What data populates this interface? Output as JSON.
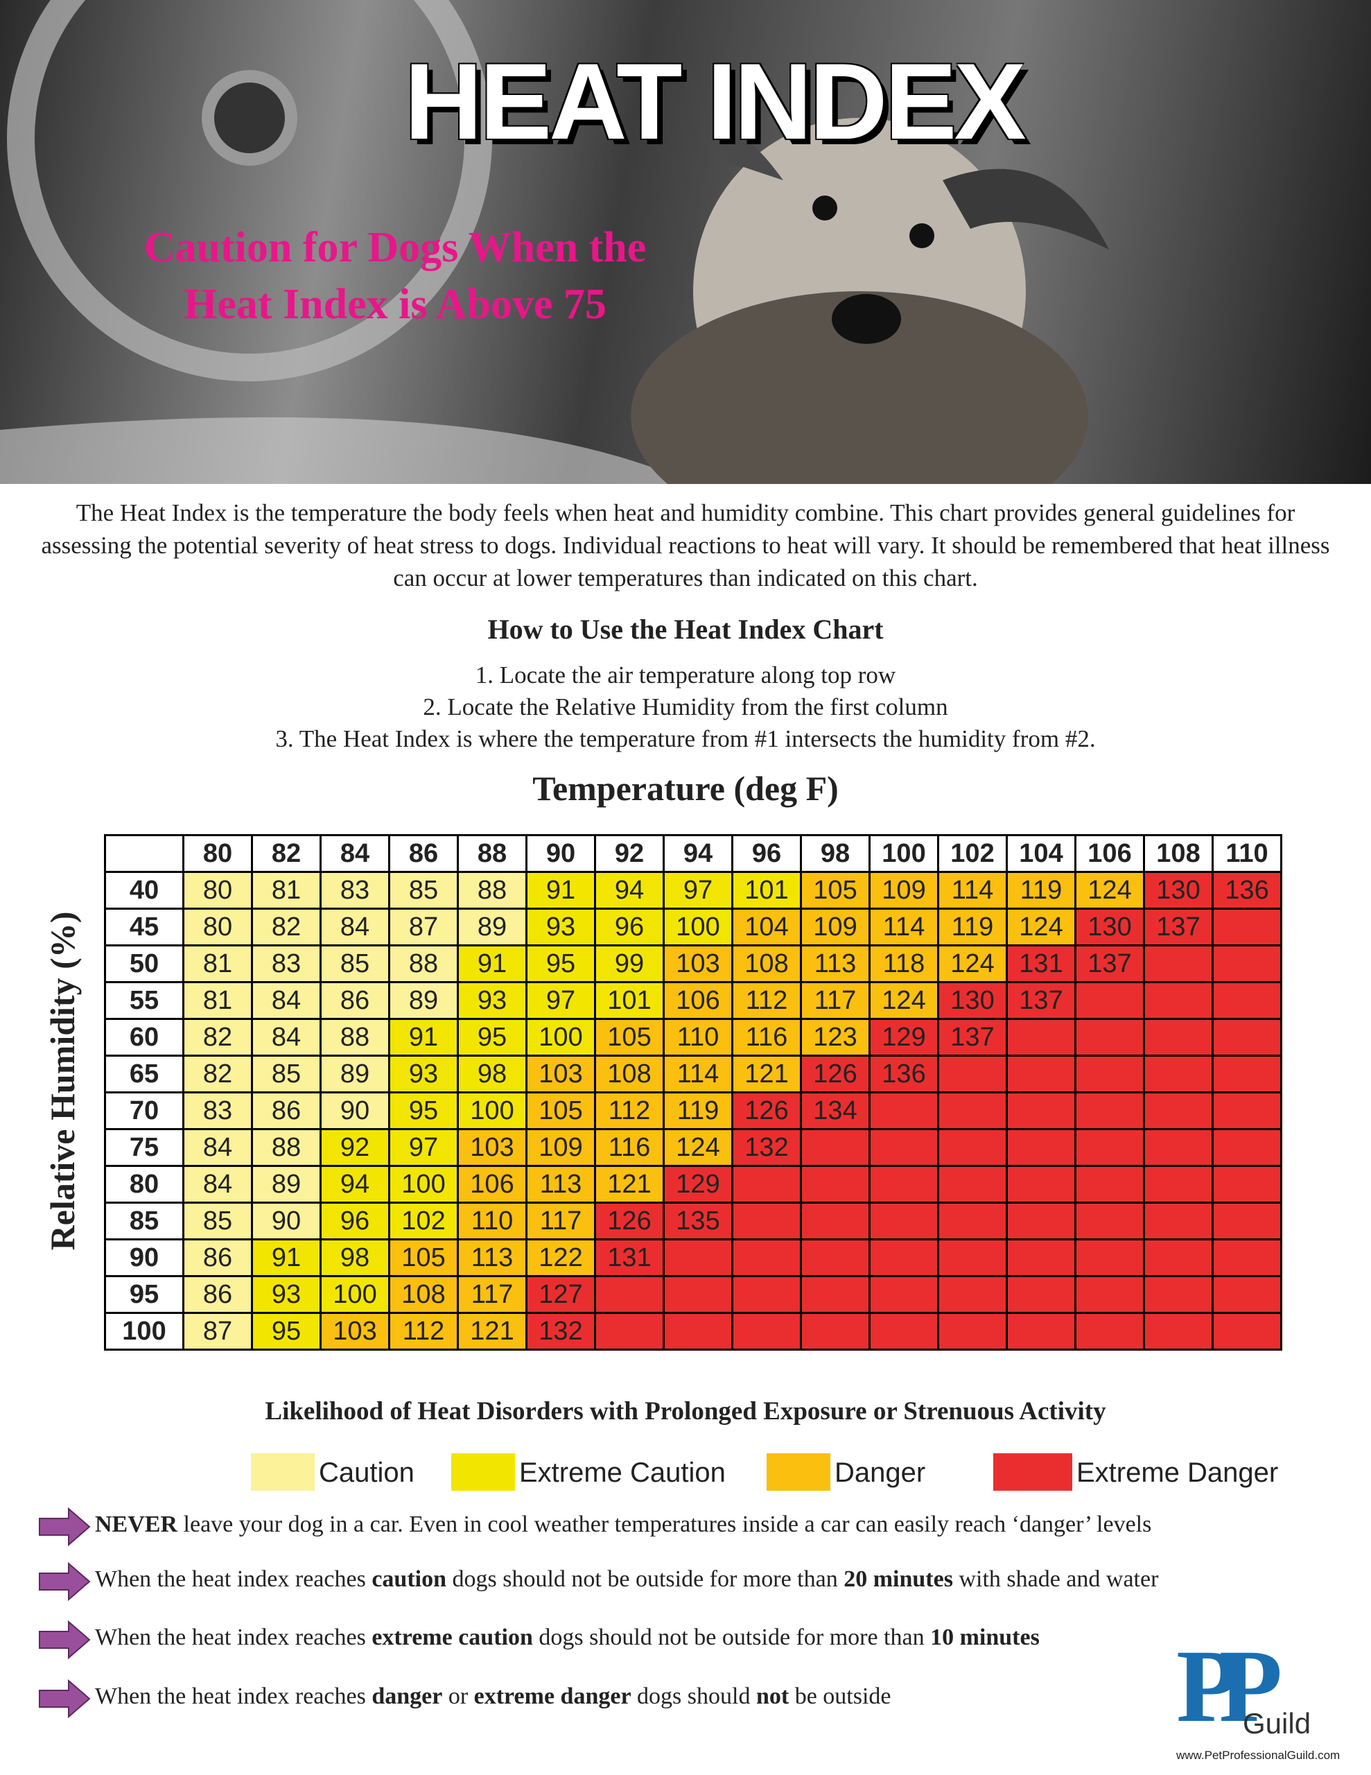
{
  "header": {
    "title": "HEAT INDEX",
    "subtitle": [
      "Caution for Dogs When the",
      "Heat Index is Above 75"
    ]
  },
  "intro": "The Heat Index is the temperature the body feels when heat and humidity combine.  This chart provides general guidelines for assessing the potential severity of heat stress to dogs.  Individual reactions to heat will vary.  It should be remembered that heat illness can occur at lower temperatures than indicated on this chart.",
  "how_to": {
    "title": "How to Use the Heat Index Chart",
    "steps": [
      "1. Locate the air temperature along top row",
      "2. Locate the Relative Humidity from the first column",
      "3. The Heat Index is where the temperature from #1 intersects the humidity from #2."
    ]
  },
  "table": {
    "column_title": "Temperature (deg F)",
    "row_title": "Relative Humidity (%)",
    "columns": [
      80,
      82,
      84,
      86,
      88,
      90,
      92,
      94,
      96,
      98,
      100,
      102,
      104,
      106,
      108,
      110
    ],
    "rows": [
      {
        "humidity": 40,
        "values": [
          80,
          81,
          83,
          85,
          88,
          91,
          94,
          97,
          101,
          105,
          109,
          114,
          119,
          124,
          130,
          136
        ],
        "levels": [
          0,
          0,
          0,
          0,
          0,
          1,
          1,
          1,
          1,
          2,
          2,
          2,
          2,
          2,
          3,
          3
        ]
      },
      {
        "humidity": 45,
        "values": [
          80,
          82,
          84,
          87,
          89,
          93,
          96,
          100,
          104,
          109,
          114,
          119,
          124,
          130,
          137,
          null
        ],
        "levels": [
          0,
          0,
          0,
          0,
          0,
          1,
          1,
          1,
          2,
          2,
          2,
          2,
          2,
          3,
          3,
          3
        ]
      },
      {
        "humidity": 50,
        "values": [
          81,
          83,
          85,
          88,
          91,
          95,
          99,
          103,
          108,
          113,
          118,
          124,
          131,
          137,
          null,
          null
        ],
        "levels": [
          0,
          0,
          0,
          0,
          1,
          1,
          1,
          2,
          2,
          2,
          2,
          2,
          3,
          3,
          3,
          3
        ]
      },
      {
        "humidity": 55,
        "values": [
          81,
          84,
          86,
          89,
          93,
          97,
          101,
          106,
          112,
          117,
          124,
          130,
          137,
          null,
          null,
          null
        ],
        "levels": [
          0,
          0,
          0,
          0,
          1,
          1,
          1,
          2,
          2,
          2,
          2,
          3,
          3,
          3,
          3,
          3
        ]
      },
      {
        "humidity": 60,
        "values": [
          82,
          84,
          88,
          91,
          95,
          100,
          105,
          110,
          116,
          123,
          129,
          137,
          null,
          null,
          null,
          null
        ],
        "levels": [
          0,
          0,
          0,
          1,
          1,
          1,
          2,
          2,
          2,
          2,
          3,
          3,
          3,
          3,
          3,
          3
        ]
      },
      {
        "humidity": 65,
        "values": [
          82,
          85,
          89,
          93,
          98,
          103,
          108,
          114,
          121,
          126,
          136,
          null,
          null,
          null,
          null,
          null
        ],
        "levels": [
          0,
          0,
          0,
          1,
          1,
          2,
          2,
          2,
          2,
          3,
          3,
          3,
          3,
          3,
          3,
          3
        ]
      },
      {
        "humidity": 70,
        "values": [
          83,
          86,
          90,
          95,
          100,
          105,
          112,
          119,
          126,
          134,
          null,
          null,
          null,
          null,
          null,
          null
        ],
        "levels": [
          0,
          0,
          0,
          1,
          1,
          2,
          2,
          2,
          3,
          3,
          3,
          3,
          3,
          3,
          3,
          3
        ]
      },
      {
        "humidity": 75,
        "values": [
          84,
          88,
          92,
          97,
          103,
          109,
          116,
          124,
          132,
          null,
          null,
          null,
          null,
          null,
          null,
          null
        ],
        "levels": [
          0,
          0,
          1,
          1,
          2,
          2,
          2,
          2,
          3,
          3,
          3,
          3,
          3,
          3,
          3,
          3
        ]
      },
      {
        "humidity": 80,
        "values": [
          84,
          89,
          94,
          100,
          106,
          113,
          121,
          129,
          null,
          null,
          null,
          null,
          null,
          null,
          null,
          null
        ],
        "levels": [
          0,
          0,
          1,
          1,
          2,
          2,
          2,
          3,
          3,
          3,
          3,
          3,
          3,
          3,
          3,
          3
        ]
      },
      {
        "humidity": 85,
        "values": [
          85,
          90,
          96,
          102,
          110,
          117,
          126,
          135,
          null,
          null,
          null,
          null,
          null,
          null,
          null,
          null
        ],
        "levels": [
          0,
          0,
          1,
          1,
          2,
          2,
          3,
          3,
          3,
          3,
          3,
          3,
          3,
          3,
          3,
          3
        ]
      },
      {
        "humidity": 90,
        "values": [
          86,
          91,
          98,
          105,
          113,
          122,
          131,
          null,
          null,
          null,
          null,
          null,
          null,
          null,
          null,
          null
        ],
        "levels": [
          0,
          1,
          1,
          2,
          2,
          2,
          3,
          3,
          3,
          3,
          3,
          3,
          3,
          3,
          3,
          3
        ]
      },
      {
        "humidity": 95,
        "values": [
          86,
          93,
          100,
          108,
          117,
          127,
          null,
          null,
          null,
          null,
          null,
          null,
          null,
          null,
          null,
          null
        ],
        "levels": [
          0,
          1,
          1,
          2,
          2,
          3,
          3,
          3,
          3,
          3,
          3,
          3,
          3,
          3,
          3,
          3
        ]
      },
      {
        "humidity": 100,
        "values": [
          87,
          95,
          103,
          112,
          121,
          132,
          null,
          null,
          null,
          null,
          null,
          null,
          null,
          null,
          null,
          null
        ],
        "levels": [
          0,
          1,
          2,
          2,
          2,
          3,
          3,
          3,
          3,
          3,
          3,
          3,
          3,
          3,
          3,
          3
        ]
      }
    ]
  },
  "likelihood": "Likelihood of Heat Disorders with Prolonged Exposure or Strenuous Activity",
  "legend": [
    {
      "label": "Caution",
      "color": "#fbf29a"
    },
    {
      "label": "Extreme Caution",
      "color": "#f2e600"
    },
    {
      "label": "Danger",
      "color": "#fbbf0f"
    },
    {
      "label": "Extreme Danger",
      "color": "#ea2e2f"
    }
  ],
  "notes": [
    [
      {
        "text": "NEVER",
        "bold": true
      },
      {
        "text": " leave your dog in a car.  Even in cool weather temperatures inside a car can easily reach ‘danger’ levels",
        "bold": false
      }
    ],
    [
      {
        "text": "When the heat index reaches ",
        "bold": false
      },
      {
        "text": "caution",
        "bold": true
      },
      {
        "text": " dogs should not be outside for more than ",
        "bold": false
      },
      {
        "text": "20 minutes",
        "bold": true
      },
      {
        "text": " with shade and water",
        "bold": false
      }
    ],
    [
      {
        "text": "When the heat index reaches ",
        "bold": false
      },
      {
        "text": "extreme caution",
        "bold": true
      },
      {
        "text": " dogs should not be outside for more than ",
        "bold": false
      },
      {
        "text": "10 minutes",
        "bold": true
      }
    ],
    [
      {
        "text": "When the heat index reaches ",
        "bold": false
      },
      {
        "text": "danger",
        "bold": true
      },
      {
        "text": " or ",
        "bold": false
      },
      {
        "text": "extreme danger",
        "bold": true
      },
      {
        "text": " dogs should ",
        "bold": false
      },
      {
        "text": "not",
        "bold": true
      },
      {
        "text": " be outside",
        "bold": false
      }
    ]
  ],
  "logo": {
    "mark": "PP",
    "name": "Guild",
    "url": "www.PetProfessionalGuild.com"
  }
}
